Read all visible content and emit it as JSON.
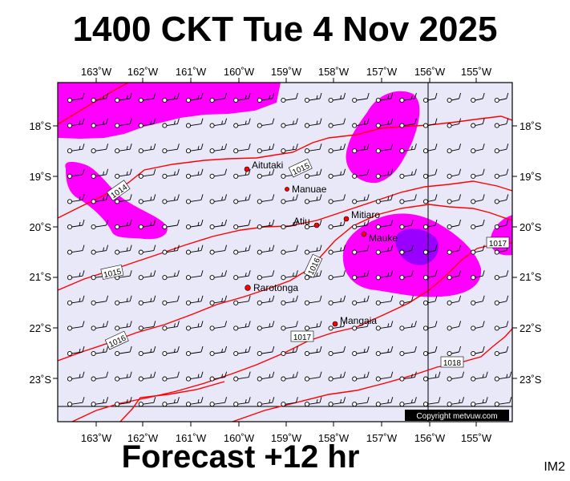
{
  "title": "1400 CKT Tue 4 Nov 2025",
  "subtitle": "Forecast +12 hr",
  "corner_label": "IM2",
  "copyright": "Copyright metvuw.com",
  "colors": {
    "sea": "#e8e8f8",
    "rain_light": "#ff00ff",
    "rain_heavy": "#9900ff",
    "isobar": "#ff0000",
    "frame": "#000000",
    "place": "#ff0000"
  },
  "axes": {
    "lon_labels": [
      "163˚W",
      "162˚W",
      "161˚W",
      "160˚W",
      "159˚W",
      "158˚W",
      "157˚W",
      "156˚W",
      "155˚W"
    ],
    "lat_labels": [
      "18˚S",
      "19˚S",
      "20˚S",
      "21˚S",
      "22˚S",
      "23˚S"
    ]
  },
  "isobar_labels": [
    "1014",
    "1015",
    "1015",
    "1016",
    "1016",
    "1017",
    "1017",
    "1018"
  ],
  "places": [
    "Aitutaki",
    "Manuae",
    "Mitiaro",
    "Atiu",
    "Mauke",
    "Rarotonga",
    "Mangaia"
  ]
}
